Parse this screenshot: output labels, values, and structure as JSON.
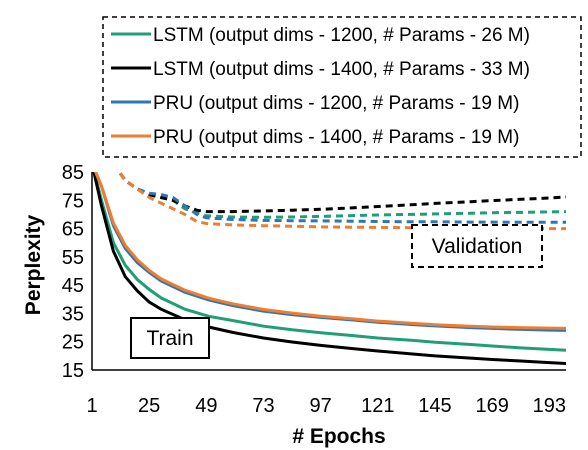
{
  "chart_data": {
    "type": "line",
    "xlabel": "# Epochs",
    "ylabel": "Perplexity",
    "xlim": [
      1,
      200
    ],
    "ylim": [
      15,
      85
    ],
    "xticks": [
      1,
      25,
      49,
      73,
      97,
      121,
      145,
      169,
      193
    ],
    "yticks": [
      15,
      25,
      35,
      45,
      55,
      65,
      75,
      85
    ],
    "grid": false,
    "legend_position": "top-right",
    "annotations": {
      "train": "Train",
      "validation": "Validation"
    },
    "series": [
      {
        "name": "LSTM (output dims - 1200, # Params - 26 M)",
        "color": "#1f9e78",
        "train": {
          "x": [
            1,
            5,
            10,
            15,
            20,
            25,
            30,
            40,
            50,
            60,
            73,
            85,
            97,
            110,
            121,
            135,
            145,
            160,
            169,
            180,
            193,
            200
          ],
          "y": [
            88,
            75,
            60,
            52,
            47,
            43.5,
            40.5,
            36.5,
            34,
            32.5,
            30.5,
            29.2,
            28.2,
            27.2,
            26.3,
            25.5,
            24.8,
            24,
            23.5,
            22.9,
            22.3,
            22
          ]
        },
        "validation": {
          "x": [
            10,
            15,
            20,
            25,
            30,
            35,
            40,
            45,
            49,
            60,
            73,
            85,
            97,
            110,
            121,
            135,
            145,
            160,
            169,
            180,
            193,
            200
          ],
          "y": [
            88,
            82,
            79,
            77,
            76,
            75,
            72,
            70.5,
            69.5,
            69.1,
            69,
            69.1,
            69.3,
            69.6,
            69.8,
            70,
            70.2,
            70.4,
            70.6,
            70.7,
            70.9,
            71
          ]
        }
      },
      {
        "name": "LSTM (output dims - 1400, # Params - 33 M)",
        "color": "#000000",
        "train": {
          "x": [
            1,
            5,
            10,
            15,
            20,
            25,
            30,
            40,
            50,
            60,
            73,
            85,
            97,
            110,
            121,
            135,
            145,
            160,
            169,
            180,
            193,
            200
          ],
          "y": [
            88,
            73,
            57,
            48,
            43,
            39,
            36.5,
            32.8,
            30.2,
            28.3,
            26.3,
            24.9,
            23.7,
            22.6,
            21.7,
            20.7,
            20,
            19.2,
            18.7,
            18.2,
            17.6,
            17.3
          ]
        },
        "validation": {
          "x": [
            10,
            15,
            20,
            25,
            30,
            35,
            40,
            45,
            49,
            60,
            73,
            85,
            97,
            110,
            121,
            135,
            145,
            160,
            169,
            180,
            193,
            200
          ],
          "y": [
            88,
            82,
            79,
            77,
            76,
            75,
            73,
            71.5,
            71,
            71,
            71.2,
            71.5,
            71.8,
            72.3,
            72.8,
            73.4,
            73.9,
            74.5,
            74.9,
            75.3,
            75.8,
            76.2
          ]
        }
      },
      {
        "name": "PRU (output dims - 1200, # Params - 19 M)",
        "color": "#2e75b6",
        "train": {
          "x": [
            1,
            5,
            10,
            15,
            20,
            25,
            30,
            40,
            50,
            60,
            73,
            85,
            97,
            110,
            121,
            135,
            145,
            160,
            169,
            180,
            193,
            200
          ],
          "y": [
            88,
            80,
            66,
            58,
            53,
            49.5,
            46.5,
            42.5,
            39.8,
            37.8,
            35.8,
            34.6,
            33.6,
            32.7,
            31.9,
            31.1,
            30.6,
            30,
            29.7,
            29.4,
            29.1,
            29
          ]
        },
        "validation": {
          "x": [
            10,
            15,
            20,
            25,
            30,
            35,
            40,
            45,
            49,
            60,
            73,
            85,
            97,
            110,
            121,
            135,
            145,
            160,
            169,
            180,
            193,
            200
          ],
          "y": [
            88,
            82,
            79,
            77.5,
            77,
            76,
            73,
            70,
            68.8,
            68.2,
            67.9,
            67.8,
            67.7,
            67.6,
            67.5,
            67.4,
            67.4,
            67.3,
            67.3,
            67.2,
            67.2,
            67.2
          ]
        }
      },
      {
        "name": "PRU (output dims - 1400, # Params - 19 M)",
        "color": "#ed7d31",
        "train": {
          "x": [
            1,
            5,
            10,
            15,
            20,
            25,
            30,
            40,
            50,
            60,
            73,
            85,
            97,
            110,
            121,
            135,
            145,
            160,
            169,
            180,
            193,
            200
          ],
          "y": [
            88,
            80,
            67,
            59,
            54,
            50.2,
            47.2,
            43.2,
            40.4,
            38.4,
            36.4,
            35.1,
            34,
            33.1,
            32.3,
            31.5,
            31,
            30.5,
            30.2,
            30,
            29.8,
            29.7
          ]
        },
        "validation": {
          "x": [
            10,
            15,
            20,
            25,
            30,
            35,
            40,
            45,
            49,
            60,
            73,
            85,
            97,
            110,
            121,
            135,
            145,
            160,
            169,
            180,
            193,
            200
          ],
          "y": [
            88,
            82,
            79,
            76,
            74,
            72,
            70,
            67.5,
            66.8,
            66.3,
            66,
            65.8,
            65.6,
            65.5,
            65.4,
            65.3,
            65.2,
            65.2,
            65.1,
            65.1,
            65,
            65
          ]
        }
      }
    ]
  }
}
